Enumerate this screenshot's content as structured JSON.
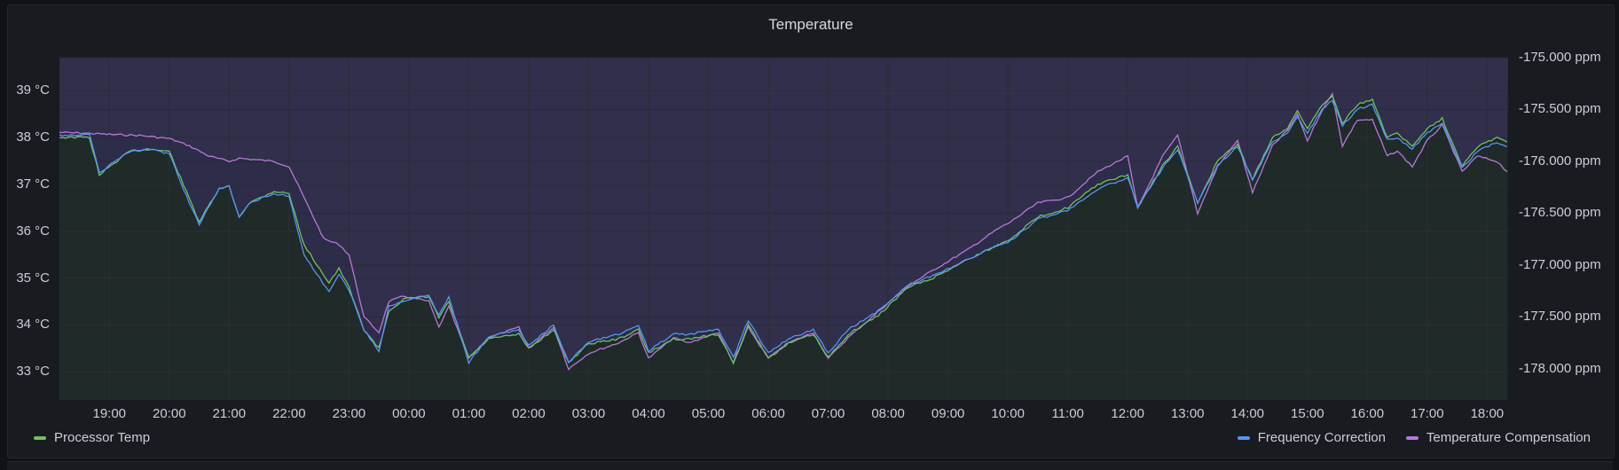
{
  "panel": {
    "title": "Temperature"
  },
  "colors": {
    "processor": "#73bf69",
    "frequency": "#5794f2",
    "compensation": "#b877d9",
    "compensation_fill": "#2f2e4a",
    "processor_fill": "#212a24",
    "grid": "#2b2e35"
  },
  "legend": {
    "left": [
      {
        "label": "Processor Temp",
        "color": "#73bf69"
      }
    ],
    "right": [
      {
        "label": "Frequency Correction",
        "color": "#5794f2"
      },
      {
        "label": "Temperature Compensation",
        "color": "#b877d9"
      }
    ]
  },
  "chart_data": {
    "type": "line",
    "title": "Temperature",
    "x_ticks": [
      "19:00",
      "20:00",
      "21:00",
      "22:00",
      "23:00",
      "00:00",
      "01:00",
      "02:00",
      "03:00",
      "04:00",
      "05:00",
      "06:00",
      "07:00",
      "08:00",
      "09:00",
      "10:00",
      "11:00",
      "12:00",
      "13:00",
      "14:00",
      "15:00",
      "16:00",
      "17:00",
      "18:00"
    ],
    "y_left": {
      "ticks": [
        "33 °C",
        "34 °C",
        "35 °C",
        "36 °C",
        "37 °C",
        "38 °C",
        "39 °C"
      ],
      "unit": "°C"
    },
    "y_right": {
      "ticks": [
        "-175.000 ppm",
        "-175.500 ppm",
        "-176.000 ppm",
        "-176.500 ppm",
        "-177.000 ppm",
        "-177.500 ppm",
        "-178.000 ppm"
      ],
      "unit": "ppm"
    },
    "series": [
      {
        "name": "Processor Temp",
        "axis": "left",
        "points": [
          [
            "18:10",
            38.0
          ],
          [
            "18:40",
            38.0
          ],
          [
            "18:50",
            37.2
          ],
          [
            "19:20",
            37.7
          ],
          [
            "19:40",
            37.75
          ],
          [
            "20:00",
            37.7
          ],
          [
            "20:20",
            36.7
          ],
          [
            "20:30",
            36.2
          ],
          [
            "20:50",
            36.9
          ],
          [
            "21:00",
            36.95
          ],
          [
            "21:10",
            36.3
          ],
          [
            "21:20",
            36.6
          ],
          [
            "21:45",
            36.85
          ],
          [
            "22:00",
            36.8
          ],
          [
            "22:15",
            35.7
          ],
          [
            "22:40",
            34.9
          ],
          [
            "22:50",
            35.2
          ],
          [
            "23:00",
            34.8
          ],
          [
            "23:15",
            33.9
          ],
          [
            "23:30",
            33.5
          ],
          [
            "23:40",
            34.3
          ],
          [
            "23:55",
            34.55
          ],
          [
            "00:20",
            34.6
          ],
          [
            "00:30",
            34.15
          ],
          [
            "00:40",
            34.5
          ],
          [
            "01:00",
            33.3
          ],
          [
            "01:20",
            33.7
          ],
          [
            "01:50",
            33.8
          ],
          [
            "02:00",
            33.5
          ],
          [
            "02:25",
            33.9
          ],
          [
            "02:40",
            33.2
          ],
          [
            "03:00",
            33.6
          ],
          [
            "03:30",
            33.7
          ],
          [
            "03:50",
            33.9
          ],
          [
            "04:00",
            33.4
          ],
          [
            "04:25",
            33.7
          ],
          [
            "04:40",
            33.7
          ],
          [
            "05:10",
            33.8
          ],
          [
            "05:25",
            33.2
          ],
          [
            "05:40",
            34.0
          ],
          [
            "06:00",
            33.3
          ],
          [
            "06:20",
            33.6
          ],
          [
            "06:45",
            33.8
          ],
          [
            "07:00",
            33.3
          ],
          [
            "07:20",
            33.8
          ],
          [
            "07:50",
            34.2
          ],
          [
            "08:20",
            34.8
          ],
          [
            "08:45",
            35.0
          ],
          [
            "09:20",
            35.4
          ],
          [
            "09:50",
            35.7
          ],
          [
            "10:00",
            35.8
          ],
          [
            "10:30",
            36.3
          ],
          [
            "11:00",
            36.5
          ],
          [
            "11:30",
            37.0
          ],
          [
            "12:00",
            37.2
          ],
          [
            "12:10",
            36.5
          ],
          [
            "12:35",
            37.4
          ],
          [
            "12:50",
            37.8
          ],
          [
            "13:10",
            36.6
          ],
          [
            "13:30",
            37.5
          ],
          [
            "13:50",
            37.85
          ],
          [
            "14:05",
            37.1
          ],
          [
            "14:25",
            38.0
          ],
          [
            "14:40",
            38.2
          ],
          [
            "14:50",
            38.55
          ],
          [
            "15:00",
            38.2
          ],
          [
            "15:15",
            38.7
          ],
          [
            "15:25",
            38.9
          ],
          [
            "15:35",
            38.3
          ],
          [
            "15:50",
            38.7
          ],
          [
            "16:05",
            38.8
          ],
          [
            "16:20",
            38.0
          ],
          [
            "16:30",
            38.1
          ],
          [
            "16:45",
            37.8
          ],
          [
            "17:00",
            38.2
          ],
          [
            "17:15",
            38.4
          ],
          [
            "17:35",
            37.4
          ],
          [
            "17:50",
            37.8
          ],
          [
            "18:10",
            38.0
          ],
          [
            "18:20",
            37.9
          ]
        ]
      },
      {
        "name": "Frequency Correction",
        "axis": "left",
        "points": [
          [
            "18:10",
            38.05
          ],
          [
            "18:40",
            38.05
          ],
          [
            "18:50",
            37.25
          ],
          [
            "19:20",
            37.7
          ],
          [
            "19:40",
            37.75
          ],
          [
            "20:00",
            37.65
          ],
          [
            "20:20",
            36.6
          ],
          [
            "20:30",
            36.15
          ],
          [
            "20:50",
            36.9
          ],
          [
            "21:00",
            36.95
          ],
          [
            "21:10",
            36.3
          ],
          [
            "21:20",
            36.6
          ],
          [
            "21:45",
            36.8
          ],
          [
            "22:00",
            36.75
          ],
          [
            "22:15",
            35.5
          ],
          [
            "22:40",
            34.7
          ],
          [
            "22:50",
            35.1
          ],
          [
            "23:00",
            34.75
          ],
          [
            "23:15",
            33.9
          ],
          [
            "23:30",
            33.45
          ],
          [
            "23:40",
            34.4
          ],
          [
            "23:55",
            34.5
          ],
          [
            "00:20",
            34.65
          ],
          [
            "00:30",
            34.2
          ],
          [
            "00:40",
            34.6
          ],
          [
            "01:00",
            33.2
          ],
          [
            "01:20",
            33.75
          ],
          [
            "01:50",
            33.9
          ],
          [
            "02:00",
            33.55
          ],
          [
            "02:25",
            34.0
          ],
          [
            "02:40",
            33.2
          ],
          [
            "03:00",
            33.65
          ],
          [
            "03:30",
            33.8
          ],
          [
            "03:50",
            34.0
          ],
          [
            "04:00",
            33.45
          ],
          [
            "04:25",
            33.8
          ],
          [
            "04:40",
            33.8
          ],
          [
            "05:10",
            33.9
          ],
          [
            "05:25",
            33.3
          ],
          [
            "05:40",
            34.1
          ],
          [
            "06:00",
            33.4
          ],
          [
            "06:20",
            33.7
          ],
          [
            "06:45",
            33.9
          ],
          [
            "07:00",
            33.4
          ],
          [
            "07:20",
            33.9
          ],
          [
            "07:50",
            34.3
          ],
          [
            "08:20",
            34.85
          ],
          [
            "08:45",
            35.05
          ],
          [
            "09:20",
            35.4
          ],
          [
            "09:50",
            35.7
          ],
          [
            "10:00",
            35.75
          ],
          [
            "10:30",
            36.25
          ],
          [
            "11:00",
            36.45
          ],
          [
            "11:30",
            36.9
          ],
          [
            "12:00",
            37.15
          ],
          [
            "12:10",
            36.5
          ],
          [
            "12:35",
            37.35
          ],
          [
            "12:50",
            37.75
          ],
          [
            "13:10",
            36.6
          ],
          [
            "13:30",
            37.4
          ],
          [
            "13:50",
            37.8
          ],
          [
            "14:05",
            37.1
          ],
          [
            "14:25",
            37.9
          ],
          [
            "14:40",
            38.1
          ],
          [
            "14:50",
            38.45
          ],
          [
            "15:00",
            38.1
          ],
          [
            "15:15",
            38.6
          ],
          [
            "15:25",
            38.8
          ],
          [
            "15:35",
            38.25
          ],
          [
            "15:50",
            38.6
          ],
          [
            "16:05",
            38.7
          ],
          [
            "16:20",
            37.95
          ],
          [
            "16:30",
            38.0
          ],
          [
            "16:45",
            37.75
          ],
          [
            "17:00",
            38.1
          ],
          [
            "17:15",
            38.3
          ],
          [
            "17:35",
            37.35
          ],
          [
            "17:50",
            37.7
          ],
          [
            "18:10",
            37.9
          ],
          [
            "18:20",
            37.8
          ]
        ]
      },
      {
        "name": "Temperature Compensation",
        "axis": "right",
        "points": [
          [
            "18:10",
            -175.72
          ],
          [
            "18:40",
            -175.73
          ],
          [
            "19:00",
            -175.74
          ],
          [
            "19:30",
            -175.75
          ],
          [
            "20:00",
            -175.78
          ],
          [
            "20:20",
            -175.85
          ],
          [
            "20:40",
            -175.95
          ],
          [
            "21:00",
            -176.0
          ],
          [
            "21:10",
            -175.97
          ],
          [
            "21:45",
            -176.0
          ],
          [
            "22:00",
            -176.05
          ],
          [
            "22:15",
            -176.35
          ],
          [
            "22:35",
            -176.75
          ],
          [
            "22:50",
            -176.8
          ],
          [
            "23:00",
            -176.9
          ],
          [
            "23:15",
            -177.5
          ],
          [
            "23:30",
            -177.65
          ],
          [
            "23:40",
            -177.35
          ],
          [
            "23:55",
            -177.3
          ],
          [
            "00:20",
            -177.35
          ],
          [
            "00:30",
            -177.6
          ],
          [
            "00:40",
            -177.4
          ],
          [
            "01:00",
            -177.9
          ],
          [
            "01:20",
            -177.7
          ],
          [
            "01:50",
            -177.6
          ],
          [
            "02:00",
            -177.8
          ],
          [
            "02:25",
            -177.6
          ],
          [
            "02:40",
            -178.0
          ],
          [
            "03:00",
            -177.85
          ],
          [
            "03:30",
            -177.75
          ],
          [
            "03:50",
            -177.65
          ],
          [
            "04:00",
            -177.9
          ],
          [
            "04:25",
            -177.7
          ],
          [
            "04:40",
            -177.75
          ],
          [
            "05:10",
            -177.65
          ],
          [
            "05:25",
            -177.95
          ],
          [
            "05:40",
            -177.6
          ],
          [
            "06:00",
            -177.9
          ],
          [
            "06:20",
            -177.75
          ],
          [
            "06:45",
            -177.65
          ],
          [
            "07:00",
            -177.9
          ],
          [
            "07:20",
            -177.7
          ],
          [
            "07:50",
            -177.45
          ],
          [
            "08:20",
            -177.2
          ],
          [
            "08:45",
            -177.05
          ],
          [
            "09:20",
            -176.85
          ],
          [
            "09:50",
            -176.65
          ],
          [
            "10:00",
            -176.6
          ],
          [
            "10:30",
            -176.4
          ],
          [
            "11:00",
            -176.35
          ],
          [
            "11:30",
            -176.1
          ],
          [
            "12:00",
            -175.95
          ],
          [
            "12:10",
            -176.45
          ],
          [
            "12:35",
            -175.95
          ],
          [
            "12:50",
            -175.75
          ],
          [
            "13:10",
            -176.5
          ],
          [
            "13:30",
            -176.05
          ],
          [
            "13:50",
            -175.8
          ],
          [
            "14:05",
            -176.3
          ],
          [
            "14:25",
            -175.85
          ],
          [
            "14:40",
            -175.7
          ],
          [
            "14:50",
            -175.55
          ],
          [
            "15:00",
            -175.8
          ],
          [
            "15:15",
            -175.5
          ],
          [
            "15:25",
            -175.35
          ],
          [
            "15:35",
            -175.85
          ],
          [
            "15:50",
            -175.6
          ],
          [
            "16:05",
            -175.6
          ],
          [
            "16:20",
            -175.95
          ],
          [
            "16:30",
            -175.9
          ],
          [
            "16:45",
            -176.05
          ],
          [
            "17:00",
            -175.8
          ],
          [
            "17:15",
            -175.65
          ],
          [
            "17:35",
            -176.1
          ],
          [
            "17:50",
            -175.95
          ],
          [
            "18:10",
            -176.0
          ],
          [
            "18:20",
            -176.1
          ]
        ]
      }
    ]
  }
}
